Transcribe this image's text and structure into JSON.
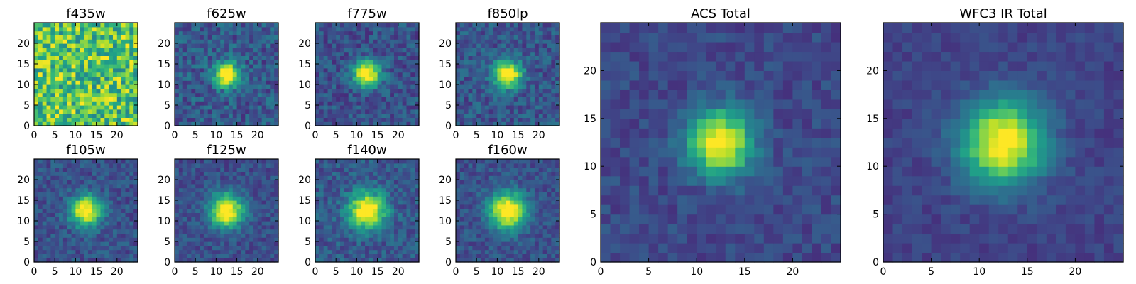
{
  "chart_data": [
    {
      "type": "heatmap",
      "title": "f435w",
      "x_ticks": [
        0,
        5,
        10,
        15,
        20
      ],
      "y_ticks": [
        0,
        5,
        10,
        15,
        20
      ],
      "xlim": [
        0,
        25
      ],
      "ylim": [
        0,
        25
      ],
      "pixels": 25,
      "source_center": null,
      "source_sigma": 0,
      "background_level": 0.72,
      "noise": 0.28,
      "colormap": "viridis"
    },
    {
      "type": "heatmap",
      "title": "f625w",
      "x_ticks": [
        0,
        5,
        10,
        15,
        20
      ],
      "y_ticks": [
        0,
        5,
        10,
        15,
        20
      ],
      "xlim": [
        0,
        25
      ],
      "ylim": [
        0,
        25
      ],
      "pixels": 25,
      "source_center": [
        12,
        12
      ],
      "source_sigma": 2.1,
      "background_level": 0.28,
      "noise": 0.15,
      "colormap": "viridis"
    },
    {
      "type": "heatmap",
      "title": "f775w",
      "x_ticks": [
        0,
        5,
        10,
        15,
        20
      ],
      "y_ticks": [
        0,
        5,
        10,
        15,
        20
      ],
      "xlim": [
        0,
        25
      ],
      "ylim": [
        0,
        25
      ],
      "pixels": 25,
      "source_center": [
        12,
        12
      ],
      "source_sigma": 2.2,
      "background_level": 0.25,
      "noise": 0.13,
      "colormap": "viridis"
    },
    {
      "type": "heatmap",
      "title": "f850lp",
      "x_ticks": [
        0,
        5,
        10,
        15,
        20
      ],
      "y_ticks": [
        0,
        5,
        10,
        15,
        20
      ],
      "xlim": [
        0,
        25
      ],
      "ylim": [
        0,
        25
      ],
      "pixels": 25,
      "source_center": [
        12,
        12
      ],
      "source_sigma": 2.3,
      "background_level": 0.27,
      "noise": 0.13,
      "colormap": "viridis"
    },
    {
      "type": "heatmap",
      "title": "f105w",
      "x_ticks": [
        0,
        5,
        10,
        15,
        20
      ],
      "y_ticks": [
        0,
        5,
        10,
        15,
        20
      ],
      "xlim": [
        0,
        25
      ],
      "ylim": [
        0,
        25
      ],
      "pixels": 25,
      "source_center": [
        12,
        12
      ],
      "source_sigma": 2.6,
      "background_level": 0.25,
      "noise": 0.11,
      "colormap": "viridis"
    },
    {
      "type": "heatmap",
      "title": "f125w",
      "x_ticks": [
        0,
        5,
        10,
        15,
        20
      ],
      "y_ticks": [
        0,
        5,
        10,
        15,
        20
      ],
      "xlim": [
        0,
        25
      ],
      "ylim": [
        0,
        25
      ],
      "pixels": 25,
      "source_center": [
        12,
        12
      ],
      "source_sigma": 2.8,
      "background_level": 0.24,
      "noise": 0.1,
      "colormap": "viridis"
    },
    {
      "type": "heatmap",
      "title": "f140w",
      "x_ticks": [
        0,
        5,
        10,
        15,
        20
      ],
      "y_ticks": [
        0,
        5,
        10,
        15,
        20
      ],
      "xlim": [
        0,
        25
      ],
      "ylim": [
        0,
        25
      ],
      "pixels": 25,
      "source_center": [
        12,
        12
      ],
      "source_sigma": 3.0,
      "background_level": 0.28,
      "noise": 0.12,
      "colormap": "viridis"
    },
    {
      "type": "heatmap",
      "title": "f160w",
      "x_ticks": [
        0,
        5,
        10,
        15,
        20
      ],
      "y_ticks": [
        0,
        5,
        10,
        15,
        20
      ],
      "xlim": [
        0,
        25
      ],
      "ylim": [
        0,
        25
      ],
      "pixels": 25,
      "source_center": [
        12,
        12
      ],
      "source_sigma": 3.1,
      "background_level": 0.25,
      "noise": 0.1,
      "colormap": "viridis"
    },
    {
      "type": "heatmap",
      "title": "ACS Total",
      "x_ticks": [
        0,
        5,
        10,
        15,
        20
      ],
      "y_ticks": [
        0,
        5,
        10,
        15,
        20
      ],
      "xlim": [
        0,
        25
      ],
      "ylim": [
        0,
        25
      ],
      "pixels": 25,
      "source_center": [
        12,
        12
      ],
      "source_sigma": 2.3,
      "background_level": 0.22,
      "noise": 0.08,
      "colormap": "viridis"
    },
    {
      "type": "heatmap",
      "title": "WFC3 IR Total",
      "x_ticks": [
        0,
        5,
        10,
        15,
        20
      ],
      "y_ticks": [
        0,
        5,
        10,
        15,
        20
      ],
      "xlim": [
        0,
        25
      ],
      "ylim": [
        0,
        25
      ],
      "pixels": 25,
      "source_center": [
        12,
        12
      ],
      "source_sigma": 3.0,
      "background_level": 0.2,
      "noise": 0.06,
      "colormap": "viridis"
    }
  ]
}
